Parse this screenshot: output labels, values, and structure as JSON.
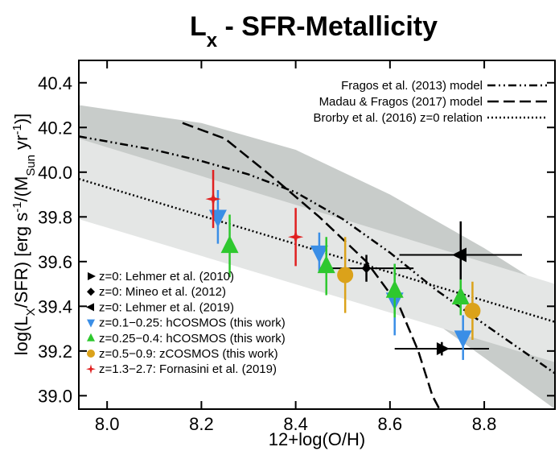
{
  "chart_data": {
    "type": "scatter",
    "title": {
      "main": "L",
      "sub": "x",
      "rest": " - SFR-Metallicity"
    },
    "x_label": "12+log(O/H)",
    "y_label": [
      {
        "text": "log(L"
      },
      {
        "text": "X",
        "shift": "sub"
      },
      {
        "text": "/SFR) [erg s"
      },
      {
        "text": "-1",
        "shift": "super"
      },
      {
        "text": "/(M"
      },
      {
        "text": "Sun",
        "shift": "sub"
      },
      {
        "text": " yr"
      },
      {
        "text": "-1",
        "shift": "super"
      },
      {
        "text": ")]"
      }
    ],
    "xlim": [
      7.94,
      8.95
    ],
    "ylim": [
      38.94,
      40.5
    ],
    "xticks": [
      {
        "value": 8,
        "label": "8.0"
      },
      8.2,
      8.4,
      8.6,
      8.8
    ],
    "yticks": [
      {
        "value": 39,
        "label": "39.0"
      },
      39.2,
      39.4,
      39.6,
      39.8,
      {
        "value": 40,
        "label": "40.0"
      },
      40.2,
      40.4
    ],
    "bands": [
      {
        "color": "#c8ccca",
        "x": [
          7.94,
          8.2,
          8.4,
          8.6,
          8.8,
          8.95
        ],
        "upper": [
          40.3,
          40.22,
          40.1,
          39.9,
          39.66,
          39.46
        ],
        "lower": [
          40.0,
          39.89,
          39.73,
          39.47,
          39.17,
          38.94
        ]
      },
      {
        "color": "#e4e6e5",
        "x": [
          7.94,
          8.95
        ],
        "upper": [
          40.15,
          39.5
        ],
        "lower": [
          39.79,
          39.15
        ]
      }
    ],
    "lines": [
      {
        "name": "Fragos et al. (2013) model",
        "dash": "10 4 2 4 2 4",
        "x": [
          7.94,
          8.1,
          8.2,
          8.3,
          8.4,
          8.5,
          8.6,
          8.7,
          8.8,
          8.95
        ],
        "y": [
          40.16,
          40.1,
          40.05,
          39.99,
          39.91,
          39.79,
          39.64,
          39.47,
          39.32,
          39.1
        ]
      },
      {
        "name": "Madau & Fragos (2017) model",
        "dash": "14 6",
        "x": [
          8.16,
          8.25,
          8.35,
          8.45,
          8.55,
          8.62,
          8.66,
          8.69,
          8.705
        ],
        "y": [
          40.22,
          40.15,
          39.98,
          39.8,
          39.6,
          39.4,
          39.2,
          39.0,
          38.94
        ]
      },
      {
        "name": "Brorby et al. (2016) z=0 relation",
        "dash": "2 3",
        "x": [
          7.94,
          8.95
        ],
        "y": [
          39.97,
          39.33
        ]
      }
    ],
    "series": [
      {
        "name": "z=0: Lehmer et al. (2010)",
        "marker": "triangle-right",
        "color": "#000000",
        "x": [
          8.71
        ],
        "y": [
          39.21
        ],
        "xerr": [
          0.1
        ],
        "yerr": [
          0.03
        ]
      },
      {
        "name": "z=0: Mineo et al. (2012)",
        "marker": "diamond",
        "color": "#000000",
        "x": [
          8.55
        ],
        "y": [
          39.57
        ],
        "xerr": [
          0.1
        ],
        "yerr": [
          0.06
        ]
      },
      {
        "name": "z=0: Lehmer et al. (2019)",
        "marker": "triangle-left",
        "color": "#000000",
        "x": [
          8.75
        ],
        "y": [
          39.63
        ],
        "xerr": [
          0.13
        ],
        "yerr": [
          0.15
        ]
      },
      {
        "name": "z=0.1−0.25: hCOSMOS (this work)",
        "marker": "triangle-down",
        "color": "#3a8ee6",
        "x": [
          8.235,
          8.45,
          8.61,
          8.755
        ],
        "y": [
          39.8,
          39.64,
          39.43,
          39.26
        ],
        "yerr": [
          0.12,
          0.09,
          0.16,
          0.1
        ]
      },
      {
        "name": "z=0.25−0.4: hCOSMOS (this work)",
        "marker": "triangle-up",
        "color": "#2ec82e",
        "x": [
          8.26,
          8.465,
          8.61,
          8.75
        ],
        "y": [
          39.67,
          39.58,
          39.47,
          39.44
        ],
        "yerr": [
          0.14,
          0.13,
          0.12,
          0.08
        ]
      },
      {
        "name": "z=0.5−0.9: zCOSMOS (this work)",
        "marker": "circle",
        "color": "#dba21a",
        "x": [
          8.505,
          8.775
        ],
        "y": [
          39.54,
          39.38
        ],
        "yerr": [
          0.17,
          0.13
        ]
      },
      {
        "name": "z=1.3−2.7: Fornasini et al. (2019)",
        "marker": "star",
        "color": "#e02020",
        "x": [
          8.225,
          8.4
        ],
        "y": [
          39.88,
          39.71
        ],
        "yerr": [
          0.13,
          0.13
        ]
      }
    ]
  }
}
